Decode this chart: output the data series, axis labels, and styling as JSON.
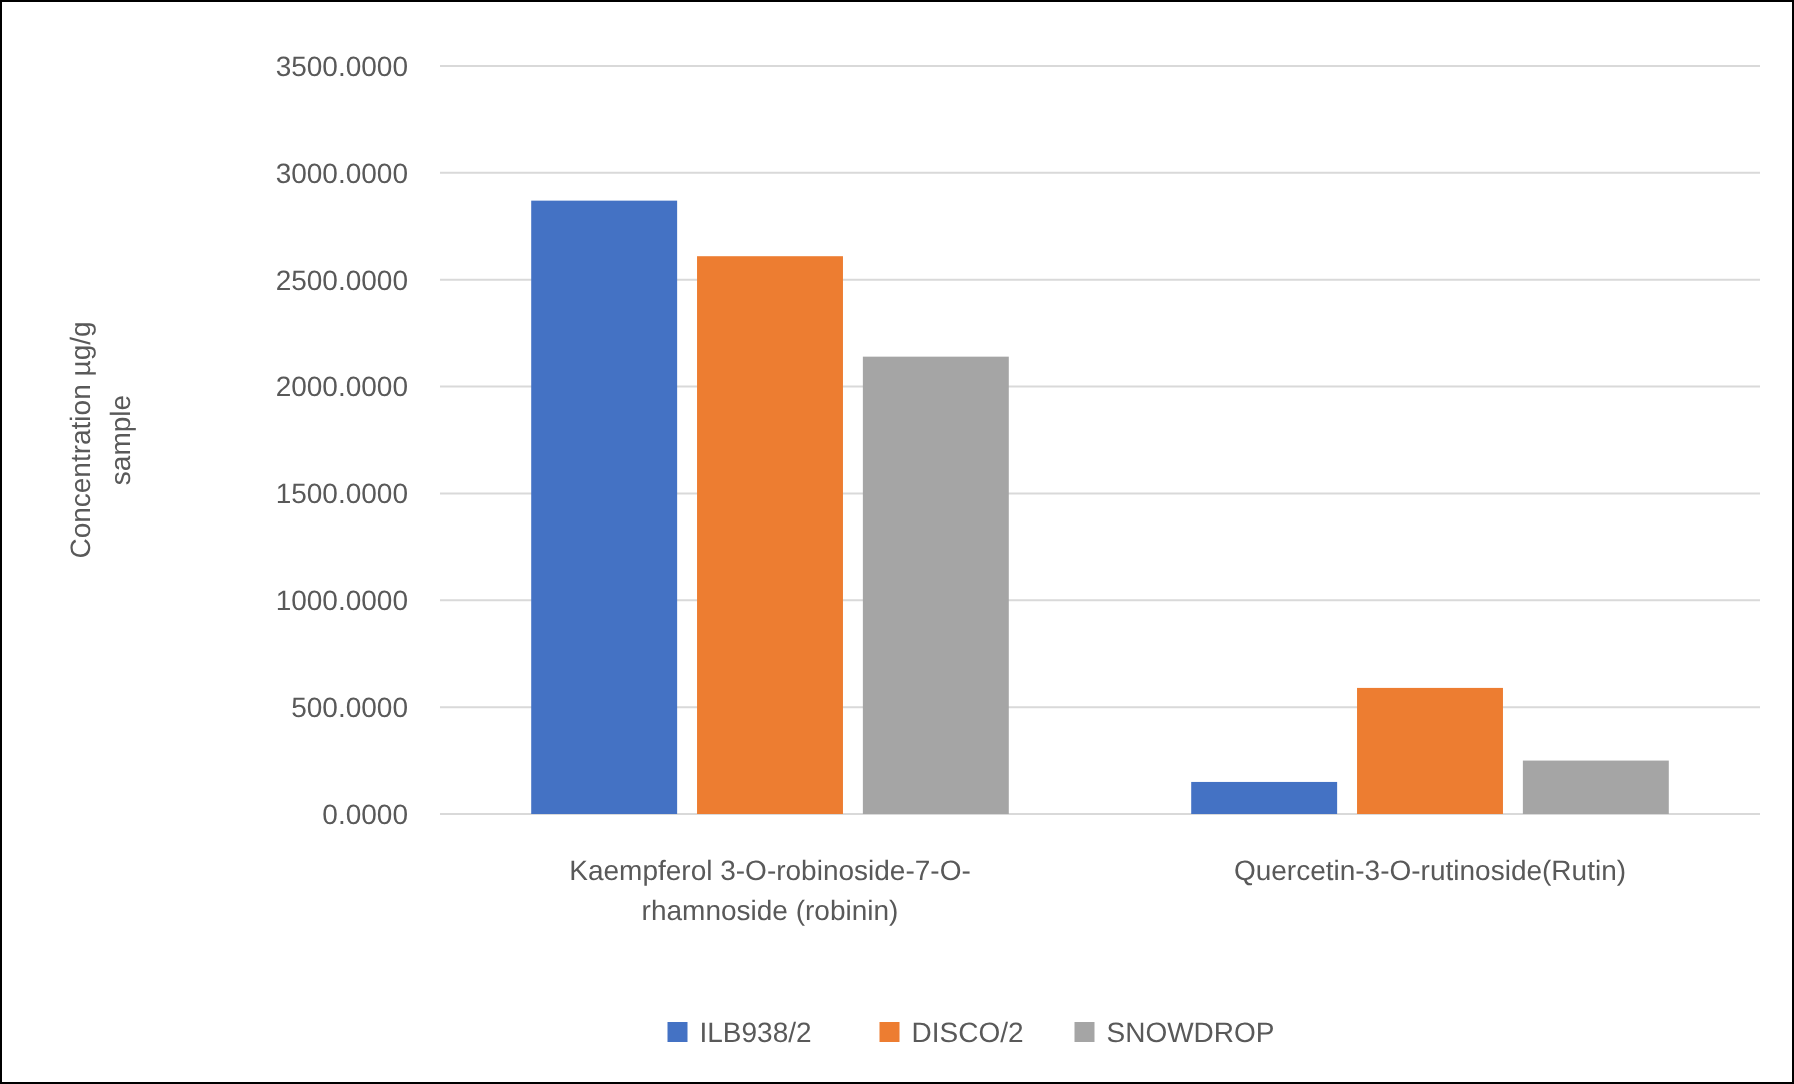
{
  "chart_data": {
    "type": "bar",
    "ylabel": "Concentration µg/g sample",
    "categories": [
      "Kaempferol 3-O-robinoside-7-O-rhamnoside (robinin)",
      "Quercetin-3-O-rutinoside(Rutin)"
    ],
    "series": [
      {
        "name": "ILB938/2",
        "color": "#4472c4",
        "values": [
          2870,
          150
        ]
      },
      {
        "name": "DISCO/2",
        "color": "#ed7d31",
        "values": [
          2610,
          590
        ]
      },
      {
        "name": "SNOWDROP",
        "color": "#a5a5a5",
        "values": [
          2140,
          250
        ]
      }
    ],
    "ylim": [
      0,
      3500
    ],
    "yticks": [
      {
        "value": 0,
        "label": "0.0000"
      },
      {
        "value": 500,
        "label": "500.0000"
      },
      {
        "value": 1000,
        "label": "1000.0000"
      },
      {
        "value": 1500,
        "label": "1500.0000"
      },
      {
        "value": 2000,
        "label": "2000.0000"
      },
      {
        "value": 2500,
        "label": "2500.0000"
      },
      {
        "value": 3000,
        "label": "3000.0000"
      },
      {
        "value": 3500,
        "label": "3500.0000"
      }
    ],
    "grid": "y",
    "legend": "bottom"
  }
}
